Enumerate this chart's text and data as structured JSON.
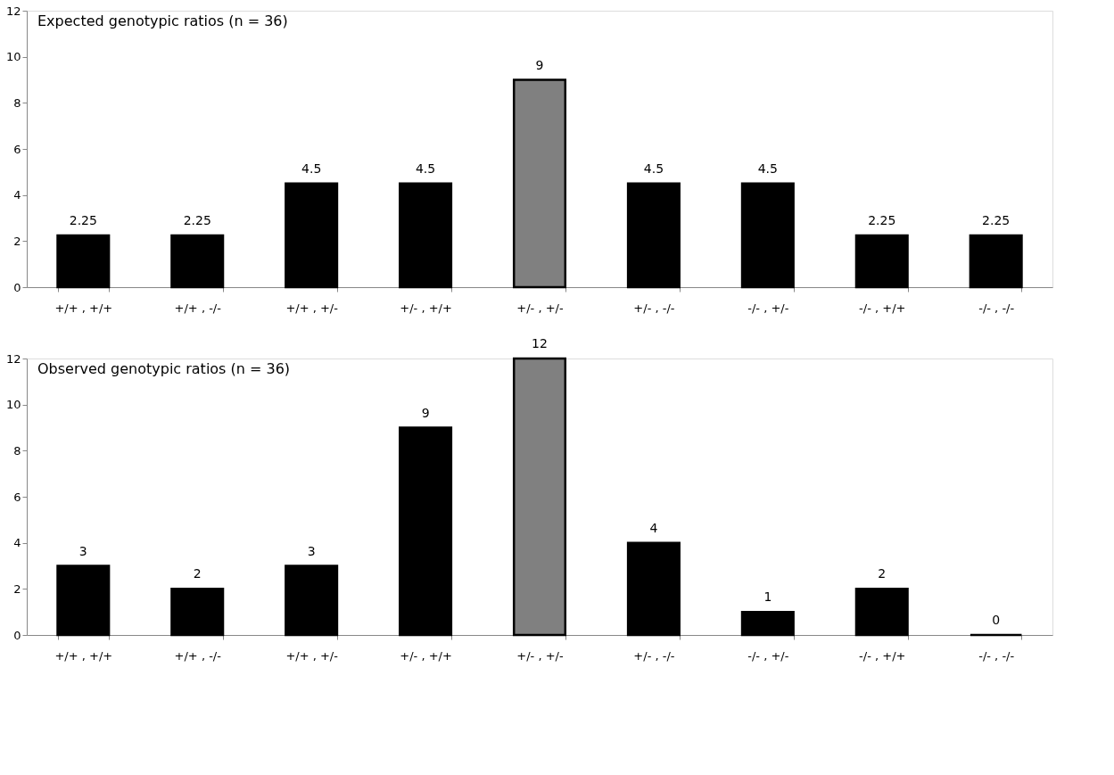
{
  "chart_data": [
    {
      "type": "bar",
      "title": "Expected genotypic ratios (n = 36)",
      "categories": [
        "+/+ , +/+",
        "+/+ , -/-",
        "+/+ , +/-",
        "+/- , +/+",
        "+/- , +/-",
        "+/- , -/-",
        "-/- , +/-",
        "-/- , +/+",
        "-/- , -/-"
      ],
      "values": [
        2.25,
        2.25,
        4.5,
        4.5,
        9,
        4.5,
        4.5,
        2.25,
        2.25
      ],
      "colors": [
        "#000000",
        "#000000",
        "#000000",
        "#000000",
        "#808080",
        "#000000",
        "#000000",
        "#000000",
        "#000000"
      ],
      "ylim": [
        0,
        12
      ],
      "yticks": [
        0,
        2,
        4,
        6,
        8,
        10,
        12
      ],
      "data_labels": true
    },
    {
      "type": "bar",
      "title": "Observed genotypic ratios (n = 36)",
      "categories": [
        "+/+ , +/+",
        "+/+ , -/-",
        "+/+ , +/-",
        "+/- , +/+",
        "+/- , +/-",
        "+/- , -/-",
        "-/- , +/-",
        "-/- , +/+",
        "-/- , -/-"
      ],
      "values": [
        3,
        2,
        3,
        9,
        12,
        4,
        1,
        2,
        0
      ],
      "colors": [
        "#000000",
        "#000000",
        "#000000",
        "#000000",
        "#808080",
        "#000000",
        "#000000",
        "#000000",
        "#000000"
      ],
      "ylim": [
        0,
        12
      ],
      "yticks": [
        0,
        2,
        4,
        6,
        8,
        10,
        12
      ],
      "data_labels": true
    }
  ]
}
